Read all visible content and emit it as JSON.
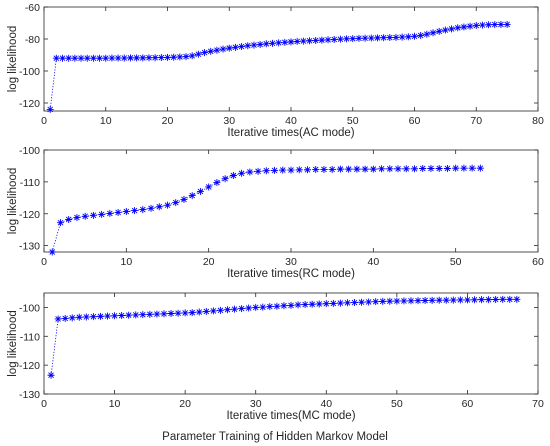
{
  "caption": "Parameter Training of Hidden Markov Model",
  "chart_data": [
    {
      "type": "line",
      "xlabel": "Iterative times(AC mode)",
      "ylabel": "log likelihood",
      "xlim": [
        0,
        80
      ],
      "ylim": [
        -125,
        -60
      ],
      "xticks": [
        0,
        10,
        20,
        30,
        40,
        50,
        60,
        70,
        80
      ],
      "yticks": [
        -120,
        -100,
        -80,
        -60
      ],
      "marker": "*",
      "line_style": "dotted",
      "color": "#0000ff",
      "series": [
        {
          "x": [
            1,
            2,
            3,
            4,
            5,
            6,
            7,
            8,
            9,
            10,
            11,
            12,
            13,
            14,
            15,
            16,
            17,
            18,
            19,
            20,
            21,
            22,
            23,
            24,
            25,
            26,
            27,
            28,
            29,
            30,
            31,
            32,
            33,
            34,
            35,
            36,
            37,
            38,
            39,
            40,
            41,
            42,
            43,
            44,
            45,
            46,
            47,
            48,
            49,
            50,
            51,
            52,
            53,
            54,
            55,
            56,
            57,
            58,
            59,
            60,
            61,
            62,
            63,
            64,
            65,
            66,
            67,
            68,
            69,
            70,
            71,
            72,
            73,
            74,
            75
          ],
          "y": [
            -124,
            -92,
            -92,
            -92,
            -92,
            -92,
            -92,
            -92,
            -92,
            -92,
            -91.9,
            -91.9,
            -91.9,
            -91.8,
            -91.8,
            -91.8,
            -91.7,
            -91.7,
            -91.6,
            -91.5,
            -91.4,
            -91.2,
            -91,
            -90.5,
            -89.5,
            -88.5,
            -87.7,
            -87,
            -86.3,
            -85.7,
            -85.2,
            -84.7,
            -84.2,
            -83.8,
            -83.4,
            -83,
            -82.7,
            -82.4,
            -82.1,
            -81.8,
            -81.5,
            -81.3,
            -81.1,
            -80.9,
            -80.7,
            -80.5,
            -80.3,
            -80.1,
            -79.9,
            -79.8,
            -79.6,
            -79.5,
            -79.4,
            -79.3,
            -79.2,
            -79.1,
            -79,
            -78.8,
            -78.6,
            -78.3,
            -77.8,
            -77,
            -76.1,
            -75.2,
            -74.4,
            -73.7,
            -73,
            -72.5,
            -72,
            -71.6,
            -71.3,
            -71.1,
            -71,
            -70.9,
            -70.9
          ]
        }
      ]
    },
    {
      "type": "line",
      "xlabel": "Iterative times(RC mode)",
      "ylabel": "log likelihood",
      "xlim": [
        0,
        60
      ],
      "ylim": [
        -132,
        -100
      ],
      "xticks": [
        0,
        10,
        20,
        30,
        40,
        50,
        60
      ],
      "yticks": [
        -130,
        -120,
        -110,
        -100
      ],
      "marker": "*",
      "line_style": "dotted",
      "color": "#0000ff",
      "series": [
        {
          "x": [
            1,
            2,
            3,
            4,
            5,
            6,
            7,
            8,
            9,
            10,
            11,
            12,
            13,
            14,
            15,
            16,
            17,
            18,
            19,
            20,
            21,
            22,
            23,
            24,
            25,
            26,
            27,
            28,
            29,
            30,
            31,
            32,
            33,
            34,
            35,
            36,
            37,
            38,
            39,
            40,
            41,
            42,
            43,
            44,
            45,
            46,
            47,
            48,
            49,
            50,
            51,
            52,
            53
          ],
          "y": [
            -132,
            -122.8,
            -121.8,
            -121.2,
            -120.8,
            -120.5,
            -120.2,
            -119.9,
            -119.6,
            -119.3,
            -119,
            -118.7,
            -118.3,
            -117.8,
            -117.3,
            -116.5,
            -115.5,
            -114.3,
            -113,
            -111.6,
            -110.2,
            -109,
            -108,
            -107.3,
            -106.9,
            -106.7,
            -106.5,
            -106.4,
            -106.3,
            -106.3,
            -106.2,
            -106.2,
            -106.1,
            -106.1,
            -106.1,
            -106,
            -106,
            -106,
            -106,
            -106,
            -105.9,
            -105.9,
            -105.9,
            -105.9,
            -105.9,
            -105.8,
            -105.8,
            -105.8,
            -105.8,
            -105.7,
            -105.7,
            -105.7,
            -105.7
          ]
        }
      ]
    },
    {
      "type": "line",
      "xlabel": "Iterative times(MC mode)",
      "ylabel": "log likelihood",
      "xlim": [
        0,
        70
      ],
      "ylim": [
        -130,
        -95
      ],
      "xticks": [
        0,
        10,
        20,
        30,
        40,
        50,
        60,
        70
      ],
      "yticks": [
        -130,
        -120,
        -110,
        -100
      ],
      "marker": "*",
      "line_style": "dotted",
      "color": "#0000ff",
      "series": [
        {
          "x": [
            1,
            2,
            3,
            4,
            5,
            6,
            7,
            8,
            9,
            10,
            11,
            12,
            13,
            14,
            15,
            16,
            17,
            18,
            19,
            20,
            21,
            22,
            23,
            24,
            25,
            26,
            27,
            28,
            29,
            30,
            31,
            32,
            33,
            34,
            35,
            36,
            37,
            38,
            39,
            40,
            41,
            42,
            43,
            44,
            45,
            46,
            47,
            48,
            49,
            50,
            51,
            52,
            53,
            54,
            55,
            56,
            57,
            58,
            59,
            60,
            61,
            62,
            63,
            64,
            65,
            66,
            67
          ],
          "y": [
            -123.5,
            -104,
            -103.8,
            -103.6,
            -103.4,
            -103.3,
            -103.2,
            -103.1,
            -103,
            -102.9,
            -102.8,
            -102.7,
            -102.6,
            -102.5,
            -102.4,
            -102.3,
            -102.2,
            -102.1,
            -102,
            -101.9,
            -101.8,
            -101.6,
            -101.4,
            -101.2,
            -101,
            -100.8,
            -100.6,
            -100.4,
            -100.2,
            -100,
            -99.9,
            -99.7,
            -99.6,
            -99.4,
            -99.3,
            -99.1,
            -99,
            -98.9,
            -98.8,
            -98.7,
            -98.6,
            -98.5,
            -98.4,
            -98.3,
            -98.2,
            -98.1,
            -98,
            -97.9,
            -97.85,
            -97.8,
            -97.75,
            -97.7,
            -97.65,
            -97.6,
            -97.55,
            -97.5,
            -97.5,
            -97.45,
            -97.4,
            -97.4,
            -97.35,
            -97.3,
            -97.3,
            -97.25,
            -97.2,
            -97.2,
            -97.2
          ]
        }
      ]
    }
  ]
}
